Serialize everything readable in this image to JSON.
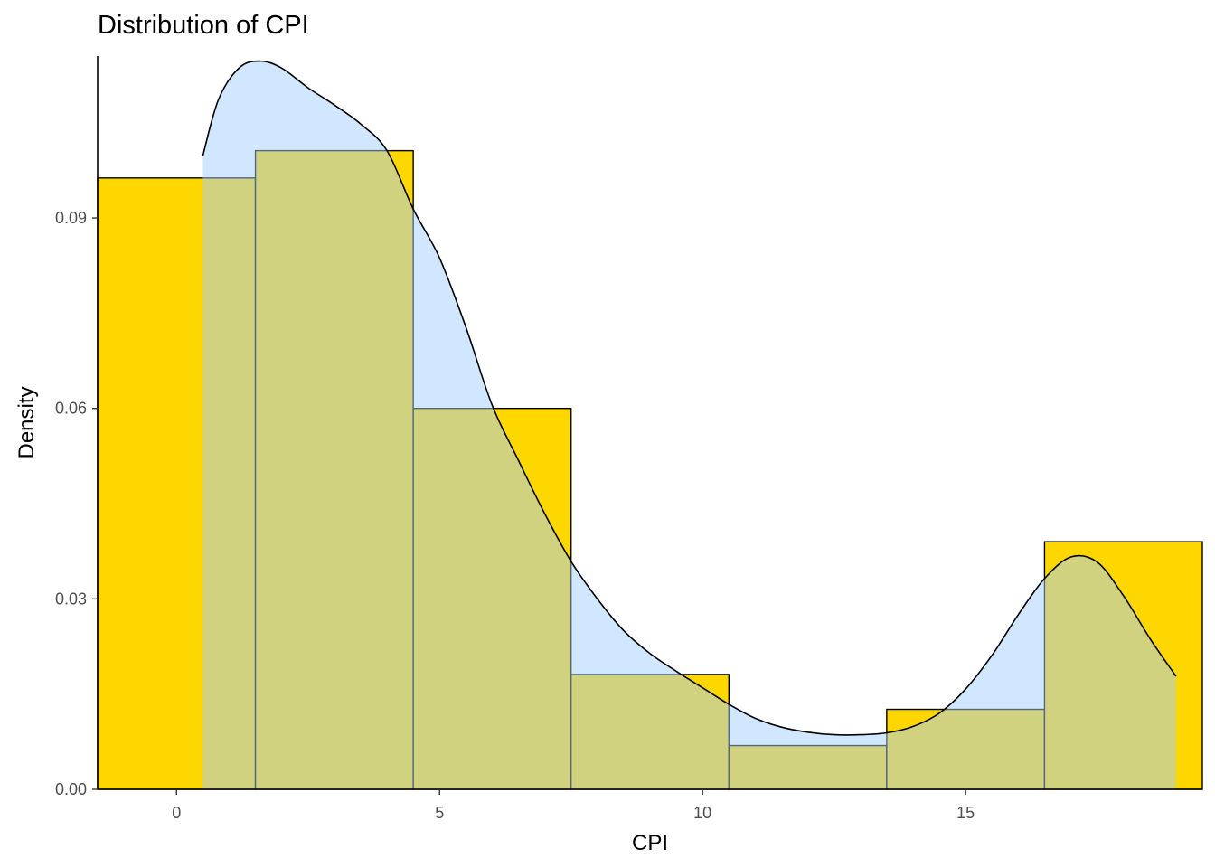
{
  "chart_data": {
    "type": "bar",
    "title": "Distribution of CPI",
    "xlabel": "CPI",
    "ylabel": "Density",
    "xlim": [
      -1.5,
      19.5
    ],
    "ylim": [
      0,
      0.1155
    ],
    "x_ticks": [
      0,
      5,
      10,
      15
    ],
    "x_tick_labels": [
      "0",
      "5",
      "10",
      "15"
    ],
    "y_ticks": [
      0,
      0.03,
      0.06,
      0.09
    ],
    "y_tick_labels": [
      "0.00",
      "0.03",
      "0.06",
      "0.09"
    ],
    "grid": false,
    "legend": "none",
    "histogram": {
      "fill": "#FFD700",
      "stroke": "#000000",
      "bins": [
        {
          "x0": -1.5,
          "x1": 1.5,
          "density": 0.0963
        },
        {
          "x0": 1.5,
          "x1": 4.5,
          "density": 0.1006
        },
        {
          "x0": 4.5,
          "x1": 7.5,
          "density": 0.06
        },
        {
          "x0": 7.5,
          "x1": 10.5,
          "density": 0.0181
        },
        {
          "x0": 10.5,
          "x1": 13.5,
          "density": 0.0069
        },
        {
          "x0": 13.5,
          "x1": 16.5,
          "density": 0.0126
        },
        {
          "x0": 16.5,
          "x1": 19.5,
          "density": 0.039
        }
      ]
    },
    "density_curve": {
      "fill": "#A4CEFF",
      "fill_opacity": 0.5,
      "stroke": "#000000",
      "x": [
        0.5,
        0.8,
        1.2,
        1.6,
        2.0,
        2.5,
        3.0,
        3.5,
        4.0,
        4.5,
        5.0,
        5.5,
        6.0,
        6.5,
        7.0,
        7.5,
        8.0,
        8.5,
        9.0,
        9.5,
        10.0,
        10.5,
        11.0,
        11.5,
        12.0,
        12.5,
        13.0,
        13.5,
        14.0,
        14.5,
        15.0,
        15.5,
        16.0,
        16.5,
        17.0,
        17.5,
        18.0,
        18.5,
        19.0
      ],
      "y": [
        0.0998,
        0.1087,
        0.1137,
        0.1147,
        0.1136,
        0.1105,
        0.1078,
        0.1048,
        0.1006,
        0.0914,
        0.0837,
        0.0728,
        0.0605,
        0.0518,
        0.0434,
        0.0359,
        0.03,
        0.025,
        0.0214,
        0.0186,
        0.016,
        0.0134,
        0.0112,
        0.0098,
        0.009,
        0.0086,
        0.0086,
        0.0089,
        0.0099,
        0.012,
        0.0158,
        0.0211,
        0.0275,
        0.0332,
        0.0366,
        0.0358,
        0.0305,
        0.0238,
        0.0178
      ]
    }
  }
}
